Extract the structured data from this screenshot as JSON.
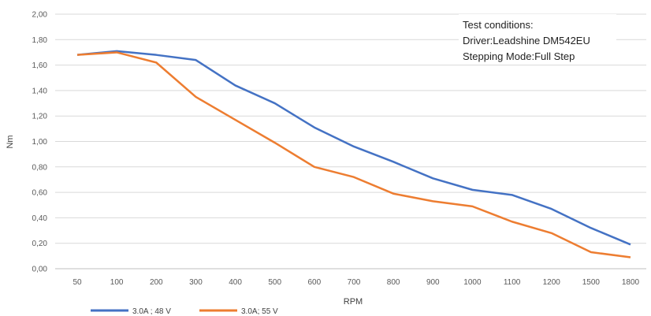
{
  "chart_data": {
    "type": "line",
    "title": "",
    "xlabel": "RPM",
    "ylabel": "Nm",
    "categories": [
      "50",
      "100",
      "200",
      "300",
      "400",
      "500",
      "600",
      "700",
      "800",
      "900",
      "1000",
      "1100",
      "1200",
      "1500",
      "1800"
    ],
    "yticks": [
      "0,00",
      "0,20",
      "0,40",
      "0,60",
      "0,80",
      "1,00",
      "1,20",
      "1,40",
      "1,60",
      "1,80",
      "2,00"
    ],
    "ylim": [
      0,
      2.0
    ],
    "grid": true,
    "legend_position": "bottom-left",
    "annotation": {
      "lines": [
        "Test conditions:",
        "Driver:Leadshine DM542EU",
        "Stepping Mode:Full Step"
      ]
    },
    "series": [
      {
        "name": "3.0A ; 48 V",
        "color": "#4472C4",
        "values": [
          1.68,
          1.71,
          1.68,
          1.64,
          1.44,
          1.3,
          1.11,
          0.96,
          0.84,
          0.71,
          0.62,
          0.58,
          0.47,
          0.32,
          0.19
        ]
      },
      {
        "name": "3.0A; 55 V",
        "color": "#ED7D31",
        "values": [
          1.68,
          1.7,
          1.62,
          1.35,
          1.17,
          0.99,
          0.8,
          0.72,
          0.59,
          0.53,
          0.49,
          0.37,
          0.28,
          0.13,
          0.09
        ]
      }
    ]
  }
}
